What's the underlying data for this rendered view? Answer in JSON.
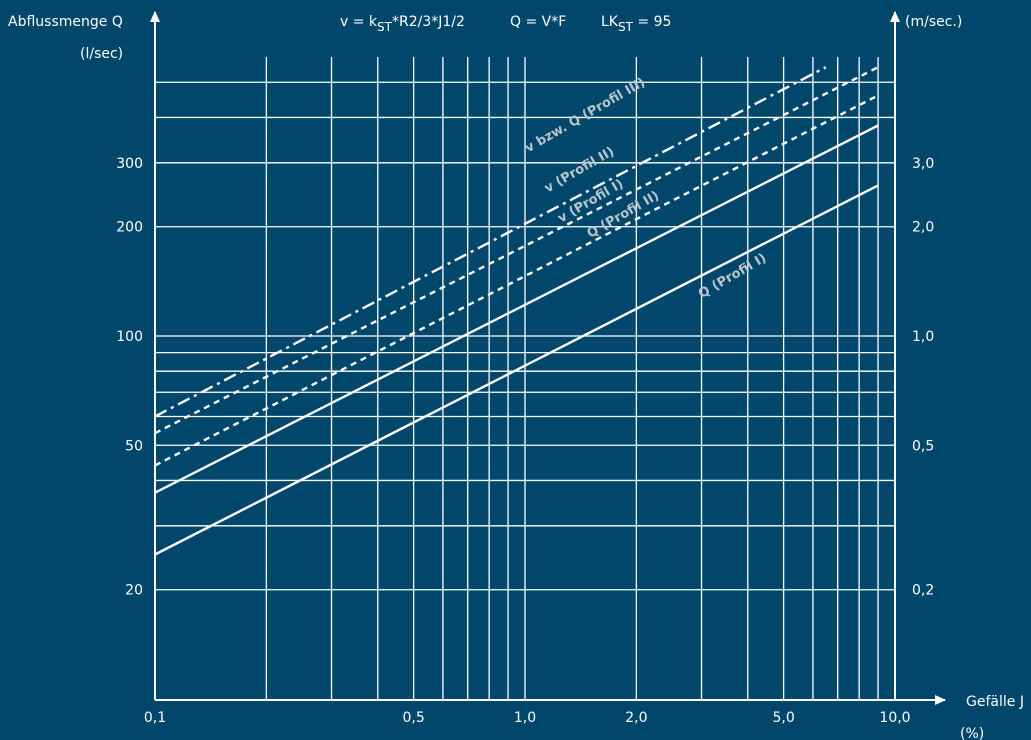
{
  "colors": {
    "background": "#00476b",
    "foreground": "#ffffff",
    "series_label": "#b8c4cc"
  },
  "chart_data": {
    "type": "line",
    "title": "",
    "formula": {
      "v": "v = k",
      "v_sub": "ST",
      "v_rest": "*R2/3*J1/2",
      "q": "Q = V*F",
      "lk": "LK",
      "lk_sub": "ST",
      "lk_rest": " = 95"
    },
    "xlabel": "Gefälle J",
    "xunit": "(%)",
    "ylabel_left": "Abflussmenge Q",
    "yunit_left": "(l/sec)",
    "ylabel_right": "(m/sec.)",
    "x_scale": "log",
    "y_scale": "log",
    "xlim": [
      0.1,
      10
    ],
    "ylim_left": [
      10,
      500
    ],
    "ylim_right": [
      0.1,
      5.0
    ],
    "x_ticks": [
      {
        "value": 0.1,
        "label": "0,1"
      },
      {
        "value": 0.5,
        "label": "0,5"
      },
      {
        "value": 1.0,
        "label": "1,0"
      },
      {
        "value": 2.0,
        "label": "2,0"
      },
      {
        "value": 5.0,
        "label": "5,0"
      },
      {
        "value": 10.0,
        "label": "10,0"
      }
    ],
    "y_ticks_left": [
      {
        "value": 20,
        "label": "20"
      },
      {
        "value": 50,
        "label": "50"
      },
      {
        "value": 100,
        "label": "100"
      },
      {
        "value": 200,
        "label": "200"
      },
      {
        "value": 300,
        "label": "300"
      }
    ],
    "y_ticks_right": [
      {
        "value": 20,
        "label": "0,2"
      },
      {
        "value": 50,
        "label": "0,5"
      },
      {
        "value": 100,
        "label": "1,0"
      },
      {
        "value": 200,
        "label": "2,0"
      },
      {
        "value": 300,
        "label": "3,0"
      }
    ],
    "x_grid": [
      0.1,
      0.2,
      0.3,
      0.4,
      0.5,
      0.6,
      0.7,
      0.8,
      0.9,
      1.0,
      2.0,
      3.0,
      4.0,
      5.0,
      6.0,
      7.0,
      8.0,
      9.0
    ],
    "y_grid": [
      20,
      30,
      40,
      50,
      60,
      70,
      80,
      90,
      100,
      200,
      300,
      400,
      500
    ],
    "grid": true,
    "series": [
      {
        "name": "Q (Profil I)",
        "style": "solid",
        "x": [
          0.1,
          9.0
        ],
        "values": [
          25,
          260
        ],
        "label_x": 3.0,
        "label_y": 127,
        "label_angle": -30
      },
      {
        "name": "Q (Profil II)",
        "style": "solid",
        "x": [
          0.1,
          9.0
        ],
        "values": [
          37,
          380
        ],
        "label_x": 1.5,
        "label_y": 186,
        "label_angle": -30
      },
      {
        "name": "v (Profil I)",
        "style": "dashed",
        "x": [
          0.1,
          9.0
        ],
        "values": [
          44,
          460
        ],
        "label_x": 1.25,
        "label_y": 205,
        "label_angle": -30
      },
      {
        "name": "v (Profil II)",
        "style": "dashed",
        "x": [
          0.1,
          9.0
        ],
        "values": [
          54,
          550
        ],
        "label_x": 1.15,
        "label_y": 248,
        "label_angle": -30
      },
      {
        "name": "v bzw. Q (Profil III)",
        "style": "dashdot",
        "x": [
          0.1,
          6.5
        ],
        "values": [
          60,
          550
        ],
        "label_x": 1.02,
        "label_y": 320,
        "label_angle": -30
      }
    ]
  }
}
